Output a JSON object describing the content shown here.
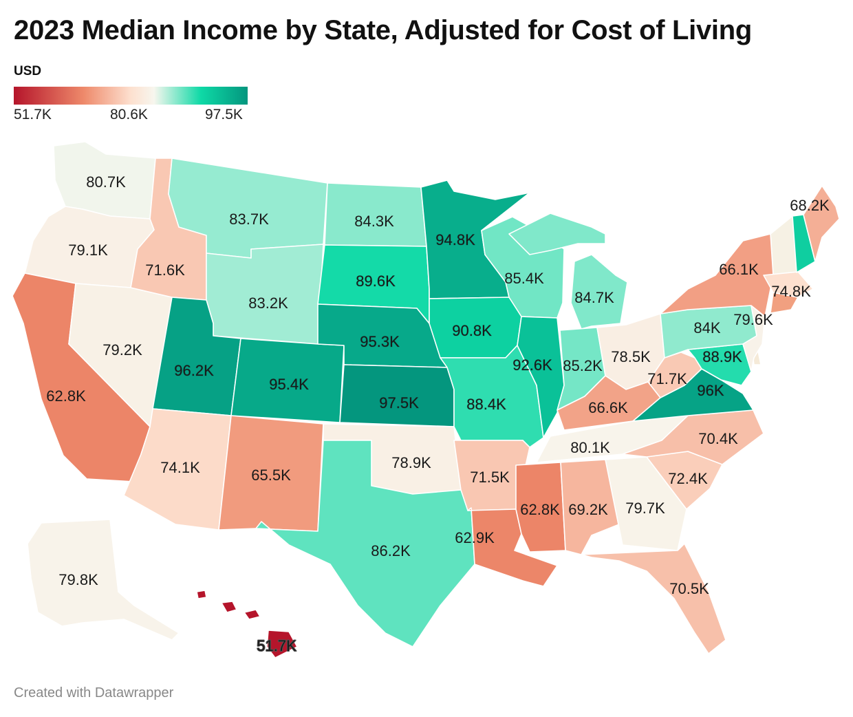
{
  "title": "2023 Median Income by State, Adjusted for Cost of Living",
  "legend": {
    "title": "USD",
    "min_label": "51.7K",
    "mid_label": "80.6K",
    "max_label": "97.5K",
    "min_value": 51.7,
    "mid_value": 80.6,
    "max_value": 97.5,
    "colors": [
      "#b5152b",
      "#ee8a6b",
      "#fde0cf",
      "#f7f6ee",
      "#0ed9a6",
      "#04967e"
    ]
  },
  "footer": "Created with Datawrapper",
  "chart_data": {
    "type": "choropleth",
    "unit": "USD (thousands)",
    "states": [
      {
        "state": "WA",
        "label": "80.7K",
        "value": 80.7
      },
      {
        "state": "OR",
        "label": "79.1K",
        "value": 79.1
      },
      {
        "state": "CA",
        "label": "62.8K",
        "value": 62.8
      },
      {
        "state": "NV",
        "label": "79.2K",
        "value": 79.2
      },
      {
        "state": "ID",
        "label": "71.6K",
        "value": 71.6
      },
      {
        "state": "MT",
        "label": "83.7K",
        "value": 83.7
      },
      {
        "state": "WY",
        "label": "83.2K",
        "value": 83.2
      },
      {
        "state": "UT",
        "label": "96.2K",
        "value": 96.2
      },
      {
        "state": "AZ",
        "label": "74.1K",
        "value": 74.1
      },
      {
        "state": "CO",
        "label": "95.4K",
        "value": 95.4
      },
      {
        "state": "NM",
        "label": "65.5K",
        "value": 65.5
      },
      {
        "state": "ND",
        "label": "84.3K",
        "value": 84.3
      },
      {
        "state": "SD",
        "label": "89.6K",
        "value": 89.6
      },
      {
        "state": "NE",
        "label": "95.3K",
        "value": 95.3
      },
      {
        "state": "KS",
        "label": "97.5K",
        "value": 97.5
      },
      {
        "state": "OK",
        "label": "78.9K",
        "value": 78.9
      },
      {
        "state": "TX",
        "label": "86.2K",
        "value": 86.2
      },
      {
        "state": "MN",
        "label": "94.8K",
        "value": 94.8
      },
      {
        "state": "IA",
        "label": "90.8K",
        "value": 90.8
      },
      {
        "state": "MO",
        "label": "88.4K",
        "value": 88.4
      },
      {
        "state": "AR",
        "label": "71.5K",
        "value": 71.5
      },
      {
        "state": "LA",
        "label": "62.9K",
        "value": 62.9
      },
      {
        "state": "WI",
        "label": "85.4K",
        "value": 85.4
      },
      {
        "state": "IL",
        "label": "92.6K",
        "value": 92.6
      },
      {
        "state": "MI",
        "label": "84.7K",
        "value": 84.7
      },
      {
        "state": "IN",
        "label": "85.2K",
        "value": 85.2
      },
      {
        "state": "OH",
        "label": "78.5K",
        "value": 78.5
      },
      {
        "state": "KY",
        "label": "66.6K",
        "value": 66.6
      },
      {
        "state": "TN",
        "label": "80.1K",
        "value": 80.1
      },
      {
        "state": "MS",
        "label": "62.8K",
        "value": 62.8
      },
      {
        "state": "AL",
        "label": "69.2K",
        "value": 69.2
      },
      {
        "state": "GA",
        "label": "79.7K",
        "value": 79.7
      },
      {
        "state": "FL",
        "label": "70.5K",
        "value": 70.5
      },
      {
        "state": "SC",
        "label": "72.4K",
        "value": 72.4
      },
      {
        "state": "NC",
        "label": "70.4K",
        "value": 70.4
      },
      {
        "state": "VA",
        "label": "96K",
        "value": 96.0
      },
      {
        "state": "WV",
        "label": "71.7K",
        "value": 71.7
      },
      {
        "state": "MD",
        "label": "88.9K",
        "value": 88.9
      },
      {
        "state": "PA",
        "label": "84K",
        "value": 84.0
      },
      {
        "state": "NJ",
        "label": "79.6K",
        "value": 79.6
      },
      {
        "state": "NY",
        "label": "66.1K",
        "value": 66.1
      },
      {
        "state": "MA",
        "label": "74.8K",
        "value": 74.8
      },
      {
        "state": "NH",
        "label": "",
        "value": null
      },
      {
        "state": "ME",
        "label": "68.2K",
        "value": 68.2
      },
      {
        "state": "AK",
        "label": "79.8K",
        "value": 79.8
      },
      {
        "state": "HI",
        "label": "51.7K",
        "value": 51.7
      }
    ]
  }
}
